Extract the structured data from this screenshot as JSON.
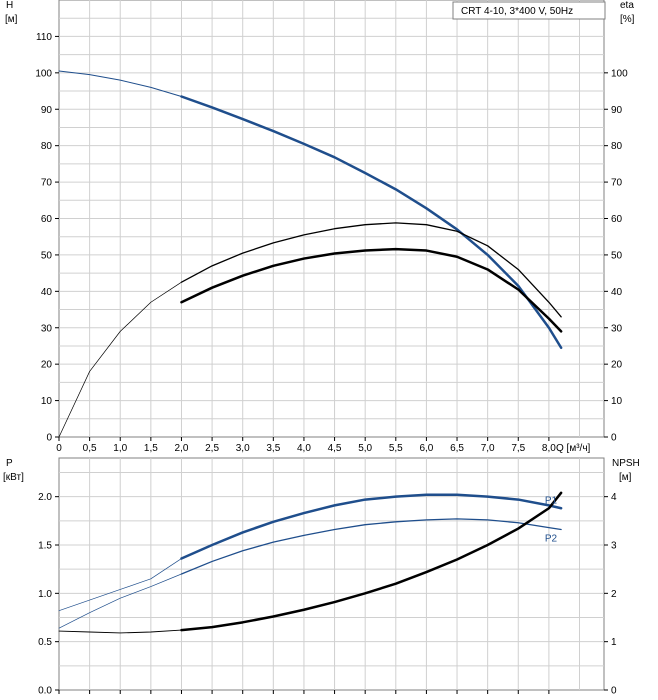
{
  "legend": {
    "text": "CRT 4-10, 3*400 V, 50Hz"
  },
  "top_axes": {
    "left_title_line1": "H",
    "left_title_line2": "[м]",
    "right_title_line1": "eta",
    "right_title_line2": "[%]",
    "x_axis_label": "Q [м³/ч]"
  },
  "bottom_axes": {
    "left_title_line1": "P",
    "left_title_line2": "[кВт]",
    "right_title_line1": "NPSH",
    "right_title_line2": "[м]"
  },
  "chart_data": [
    {
      "type": "line",
      "id": "head-efficiency",
      "x_ticks": [
        "0",
        "0,5",
        "1,0",
        "1,5",
        "2,0",
        "2,5",
        "3,0",
        "3,5",
        "4,0",
        "4,5",
        "5,0",
        "5,5",
        "6,0",
        "6,5",
        "7,0",
        "7,5",
        "8,0"
      ],
      "x_tick_values": [
        0,
        0.5,
        1,
        1.5,
        2,
        2.5,
        3,
        3.5,
        4,
        4.5,
        5,
        5.5,
        6,
        6.5,
        7,
        7.5,
        8
      ],
      "xlim": [
        0,
        8.9
      ],
      "y_left_ticks": [
        "0",
        "10",
        "20",
        "30",
        "40",
        "50",
        "60",
        "70",
        "80",
        "90",
        "100",
        "110"
      ],
      "y_left_tick_values": [
        0,
        10,
        20,
        30,
        40,
        50,
        60,
        70,
        80,
        90,
        100,
        110
      ],
      "y_right_ticks": [
        "0",
        "10",
        "20",
        "30",
        "40",
        "50",
        "60",
        "70",
        "80",
        "90",
        "100"
      ],
      "y_right_tick_values": [
        0,
        10,
        20,
        30,
        40,
        50,
        60,
        70,
        80,
        90,
        100
      ],
      "ylim": [
        0,
        120
      ],
      "grid": true,
      "series": [
        {
          "key": "head",
          "color": "#1f4e8c",
          "x": [
            0,
            0.5,
            1,
            1.5,
            2,
            2.5,
            3,
            3.5,
            4,
            4.5,
            5,
            5.5,
            6,
            6.5,
            7,
            7.5,
            8,
            8.2
          ],
          "y": [
            100.5,
            99.5,
            98,
            96,
            93.5,
            90.5,
            87.3,
            84,
            80.5,
            76.8,
            72.5,
            68,
            62.8,
            57,
            50,
            41.5,
            30,
            24.5
          ],
          "segments": [
            {
              "from": 0,
              "to": 2,
              "width": 1
            },
            {
              "from": 2,
              "to": 8.2,
              "width": 2.5
            }
          ]
        },
        {
          "key": "efficiency-thin",
          "color": "#000000",
          "x": [
            0,
            0.5,
            1,
            1.5,
            2,
            2.5,
            3,
            3.5,
            4,
            4.5,
            5,
            5.5,
            6,
            6.5,
            7,
            7.5,
            8,
            8.2
          ],
          "y": [
            0,
            18,
            29,
            37,
            42.5,
            47,
            50.5,
            53.3,
            55.5,
            57.2,
            58.3,
            58.8,
            58.3,
            56.5,
            52.5,
            46,
            37,
            33
          ],
          "segments": [
            {
              "from": 0,
              "to": 2,
              "width": 0.7
            },
            {
              "from": 2,
              "to": 8.2,
              "width": 1.3
            }
          ]
        },
        {
          "key": "efficiency-bold",
          "color": "#000000",
          "x": [
            2,
            2.5,
            3,
            3.5,
            4,
            4.5,
            5,
            5.5,
            6,
            6.5,
            7,
            7.5,
            8,
            8.2
          ],
          "y": [
            37,
            41,
            44.3,
            47,
            49,
            50.4,
            51.2,
            51.6,
            51.2,
            49.5,
            46,
            40.5,
            32.5,
            29
          ],
          "segments": [
            {
              "from": 2,
              "to": 8.2,
              "width": 2.5
            }
          ]
        }
      ]
    },
    {
      "type": "line",
      "id": "power-npsh",
      "x_tick_values": [
        0,
        0.5,
        1,
        1.5,
        2,
        2.5,
        3,
        3.5,
        4,
        4.5,
        5,
        5.5,
        6,
        6.5,
        7,
        7.5,
        8
      ],
      "xlim": [
        0,
        8.9
      ],
      "y_left_ticks": [
        "0.0",
        "0.5",
        "1.0",
        "1.5",
        "2.0"
      ],
      "y_left_tick_values": [
        0,
        0.5,
        1,
        1.5,
        2
      ],
      "y_right_ticks": [
        "0",
        "1",
        "2",
        "3",
        "4"
      ],
      "y_right_tick_values": [
        0,
        1,
        2,
        3,
        4
      ],
      "ylim": [
        0,
        2.4
      ],
      "grid": true,
      "series": [
        {
          "key": "P1",
          "name": "P1",
          "color": "#1f4e8c",
          "x": [
            0,
            0.5,
            1,
            1.5,
            2,
            2.5,
            3,
            3.5,
            4,
            4.5,
            5,
            5.5,
            6,
            6.5,
            7,
            7.5,
            8,
            8.2
          ],
          "y": [
            0.82,
            0.93,
            1.04,
            1.15,
            1.36,
            1.5,
            1.63,
            1.74,
            1.83,
            1.91,
            1.97,
            2.0,
            2.02,
            2.02,
            2.0,
            1.97,
            1.91,
            1.88
          ],
          "segments": [
            {
              "from": 0,
              "to": 2,
              "width": 0.7
            },
            {
              "from": 2,
              "to": 8.2,
              "width": 2.5
            }
          ]
        },
        {
          "key": "P2",
          "name": "P2",
          "color": "#1f4e8c",
          "x": [
            0,
            0.5,
            1,
            1.5,
            2,
            2.5,
            3,
            3.5,
            4,
            4.5,
            5,
            5.5,
            6,
            6.5,
            7,
            7.5,
            8,
            8.2
          ],
          "y": [
            0.64,
            0.8,
            0.95,
            1.07,
            1.2,
            1.33,
            1.44,
            1.53,
            1.6,
            1.66,
            1.71,
            1.74,
            1.76,
            1.77,
            1.76,
            1.73,
            1.68,
            1.66
          ],
          "segments": [
            {
              "from": 0,
              "to": 2,
              "width": 0.7
            },
            {
              "from": 2,
              "to": 8.2,
              "width": 1.3
            }
          ]
        },
        {
          "key": "NPSH",
          "color": "#000000",
          "x": [
            0,
            0.5,
            1,
            1.5,
            2,
            2.5,
            3,
            3.5,
            4,
            4.5,
            5,
            5.5,
            6,
            6.5,
            7,
            7.5,
            8,
            8.2
          ],
          "y": [
            0.61,
            0.6,
            0.59,
            0.6,
            0.62,
            0.65,
            0.7,
            0.76,
            0.83,
            0.91,
            1.0,
            1.1,
            1.22,
            1.35,
            1.5,
            1.67,
            1.88,
            2.04
          ],
          "axis": "right-scaled-2x",
          "segments": [
            {
              "from": 0,
              "to": 2,
              "width": 0.9
            },
            {
              "from": 2,
              "to": 8.2,
              "width": 2.5
            }
          ]
        }
      ]
    }
  ]
}
